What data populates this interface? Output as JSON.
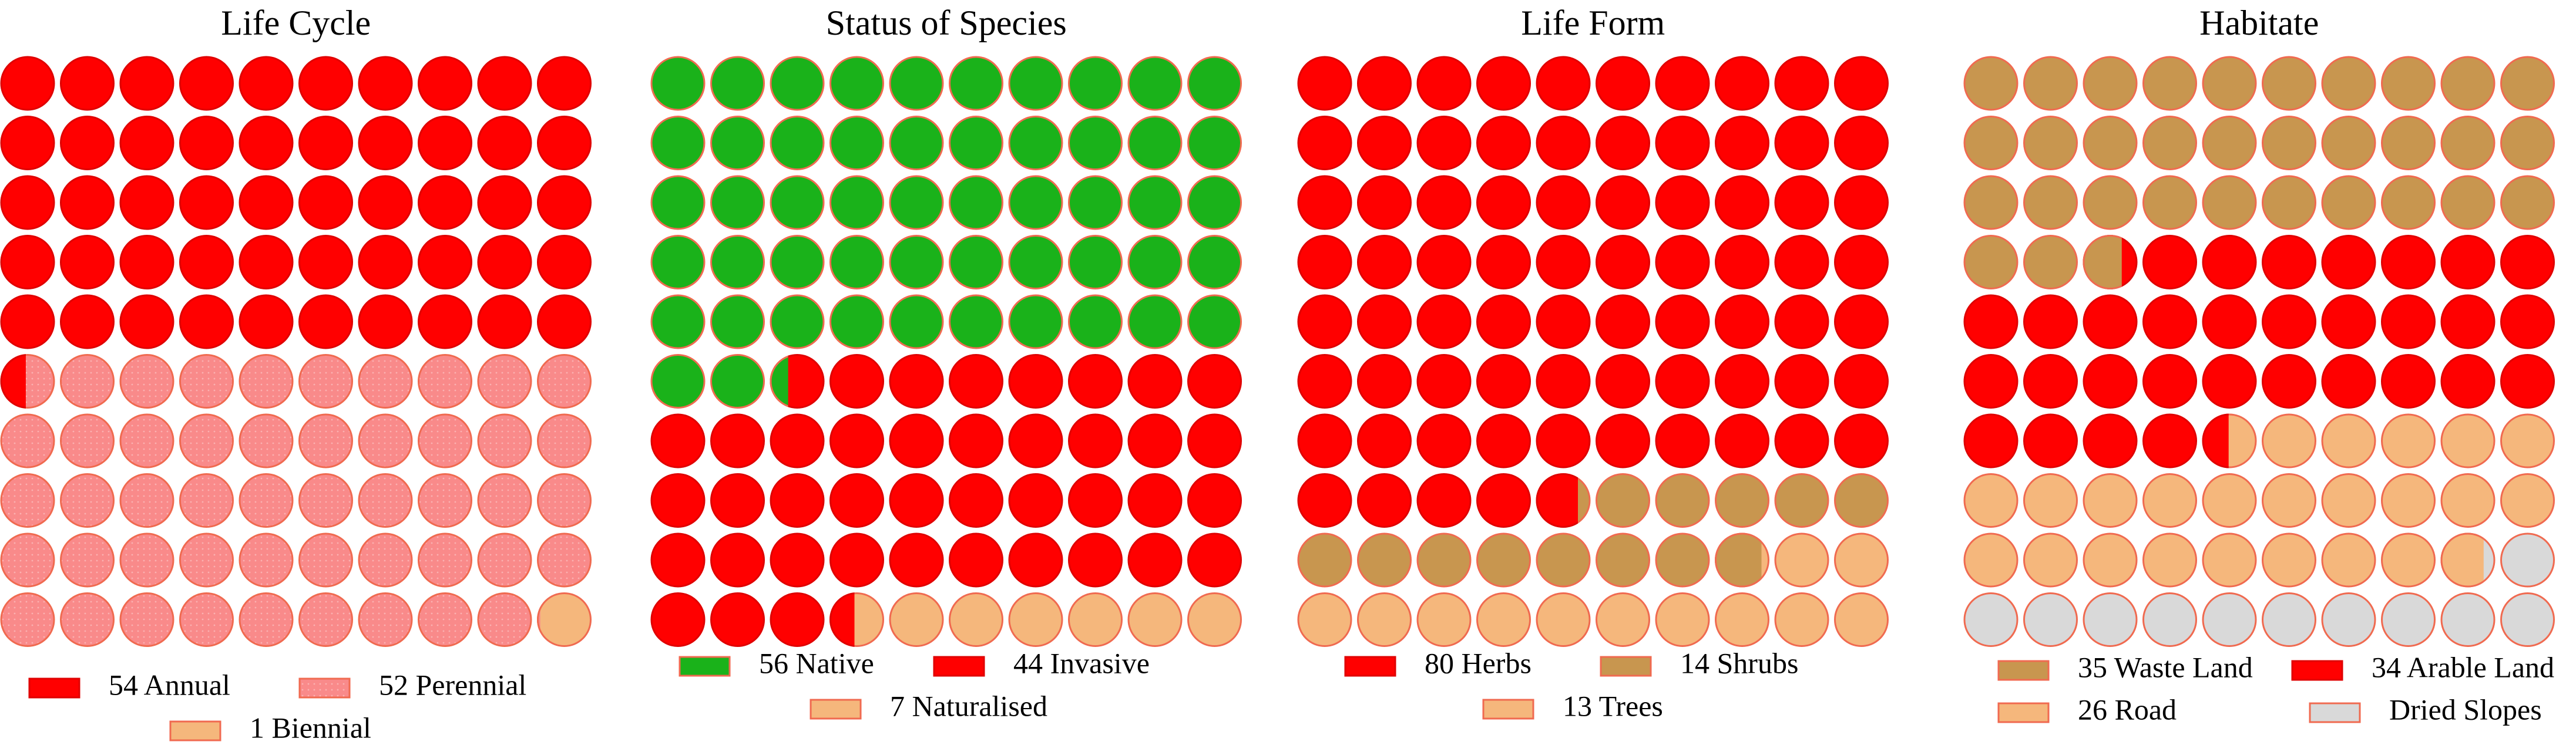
{
  "colors": {
    "annual": "#ff0000",
    "perennial": "#f98a8a",
    "biennial": "#f5b77c",
    "native": "#1ab21a",
    "invasive": "#ff0000",
    "naturalised": "#f5b77c",
    "herbs": "#ff0000",
    "shrubs": "#c8964f",
    "trees": "#f5b77c",
    "waste_land": "#c8964f",
    "arable_land": "#ff0000",
    "road": "#f5b77c",
    "dried_slopes": "#d9d9d9"
  },
  "chart_data": [
    {
      "type": "waffle",
      "title": "Life Cycle",
      "grid": [
        10,
        10
      ],
      "series": [
        {
          "name": "Annual",
          "value": 54,
          "label": "54 Annual",
          "color": "#ff0000"
        },
        {
          "name": "Perennial",
          "value": 52,
          "label": "52 Perennial",
          "color": "#f98a8a"
        },
        {
          "name": "Biennial",
          "value": 1,
          "label": "1 Biennial",
          "color": "#f5b77c"
        }
      ]
    },
    {
      "type": "waffle",
      "title": "Status of Species",
      "grid": [
        10,
        10
      ],
      "series": [
        {
          "name": "Native",
          "value": 56,
          "label": "56 Native",
          "color": "#1ab21a"
        },
        {
          "name": "Invasive",
          "value": 44,
          "label": "44 Invasive",
          "color": "#ff0000"
        },
        {
          "name": "Naturalised",
          "value": 7,
          "label": "7 Naturalised",
          "color": "#f5b77c"
        }
      ]
    },
    {
      "type": "waffle",
      "title": "Life Form",
      "grid": [
        10,
        10
      ],
      "series": [
        {
          "name": "Herbs",
          "value": 80,
          "label": "80 Herbs",
          "color": "#ff0000"
        },
        {
          "name": "Shrubs",
          "value": 14,
          "label": "14 Shrubs",
          "color": "#c8964f"
        },
        {
          "name": "Trees",
          "value": 13,
          "label": "13 Trees",
          "color": "#f5b77c"
        }
      ]
    },
    {
      "type": "waffle",
      "title": "Habitate",
      "grid": [
        10,
        10
      ],
      "series": [
        {
          "name": "Waste Land",
          "value": 35,
          "label": "35 Waste Land",
          "color": "#c8964f"
        },
        {
          "name": "Arable Land",
          "value": 34,
          "label": "34 Arable Land",
          "color": "#ff0000"
        },
        {
          "name": "Road",
          "value": 26,
          "label": "26 Road",
          "color": "#f5b77c"
        },
        {
          "name": "Dried Slopes",
          "value": 12,
          "label": "Dried Slopes",
          "color": "#d9d9d9"
        }
      ]
    }
  ]
}
